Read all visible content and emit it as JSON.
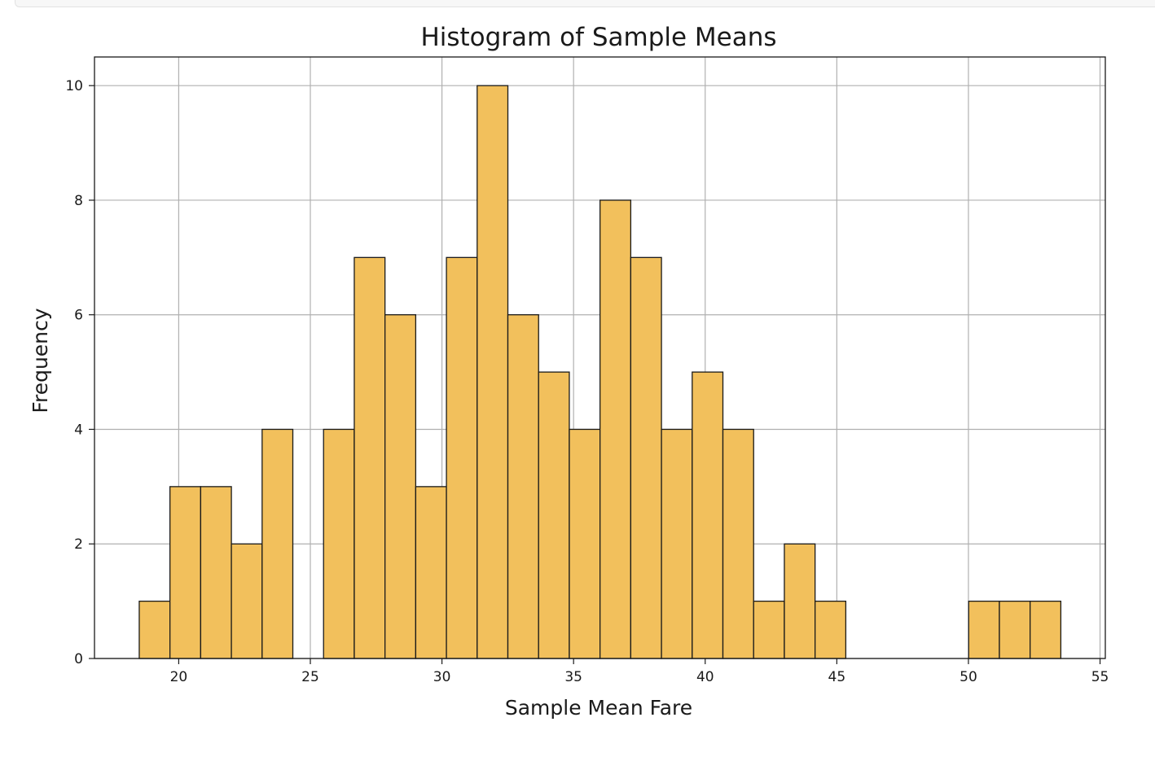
{
  "chart_data": {
    "type": "bar",
    "title": "Histogram of Sample Means",
    "xlabel": "Sample Mean Fare",
    "ylabel": "Frequency",
    "xlim": [
      16.8,
      55.2
    ],
    "ylim": [
      0,
      10.5
    ],
    "xticks": [
      20,
      25,
      30,
      35,
      40,
      45,
      50,
      55
    ],
    "yticks": [
      0,
      2,
      4,
      6,
      8,
      10
    ],
    "grid": true,
    "bar_color": "#f2c05c",
    "edge_color": "#1a1a1a",
    "bin_start": 18.5,
    "bin_width": 1.167,
    "values": [
      1,
      3,
      3,
      2,
      4,
      0,
      4,
      7,
      6,
      3,
      7,
      10,
      6,
      5,
      4,
      8,
      7,
      4,
      5,
      4,
      1,
      2,
      1,
      0,
      0,
      0,
      0,
      1,
      1,
      1
    ]
  }
}
